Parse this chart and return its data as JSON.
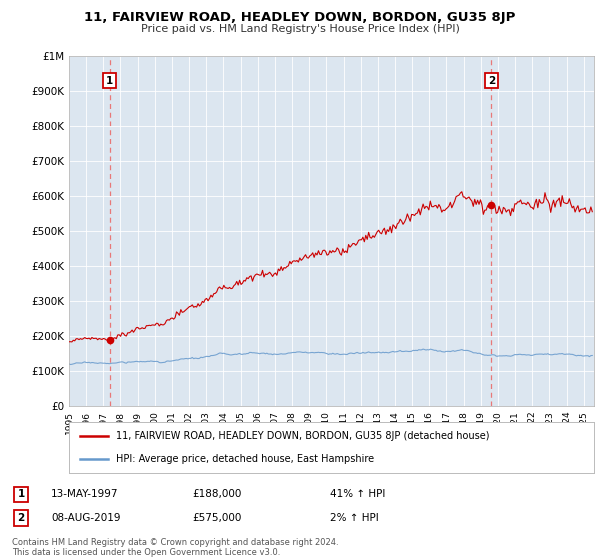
{
  "title": "11, FAIRVIEW ROAD, HEADLEY DOWN, BORDON, GU35 8JP",
  "subtitle": "Price paid vs. HM Land Registry's House Price Index (HPI)",
  "property_label": "11, FAIRVIEW ROAD, HEADLEY DOWN, BORDON, GU35 8JP (detached house)",
  "hpi_label": "HPI: Average price, detached house, East Hampshire",
  "transaction1_date": "13-MAY-1997",
  "transaction1_price": 188000,
  "transaction1_hpi": "41% ↑ HPI",
  "transaction2_date": "08-AUG-2019",
  "transaction2_price": 575000,
  "transaction2_hpi": "2% ↑ HPI",
  "copyright": "Contains HM Land Registry data © Crown copyright and database right 2024.\nThis data is licensed under the Open Government Licence v3.0.",
  "property_color": "#cc0000",
  "hpi_color": "#6699cc",
  "dashed_color": "#e87878",
  "plot_bg": "#dce6f0",
  "ylim_min": 0,
  "ylim_max": 1000000,
  "ytick_values": [
    0,
    100000,
    200000,
    300000,
    400000,
    500000,
    600000,
    700000,
    800000,
    900000,
    1000000
  ],
  "ytick_labels": [
    "£0",
    "£100K",
    "£200K",
    "£300K",
    "£400K",
    "£500K",
    "£600K",
    "£700K",
    "£800K",
    "£900K",
    "£1M"
  ],
  "year_start": 1995,
  "year_end": 2025
}
